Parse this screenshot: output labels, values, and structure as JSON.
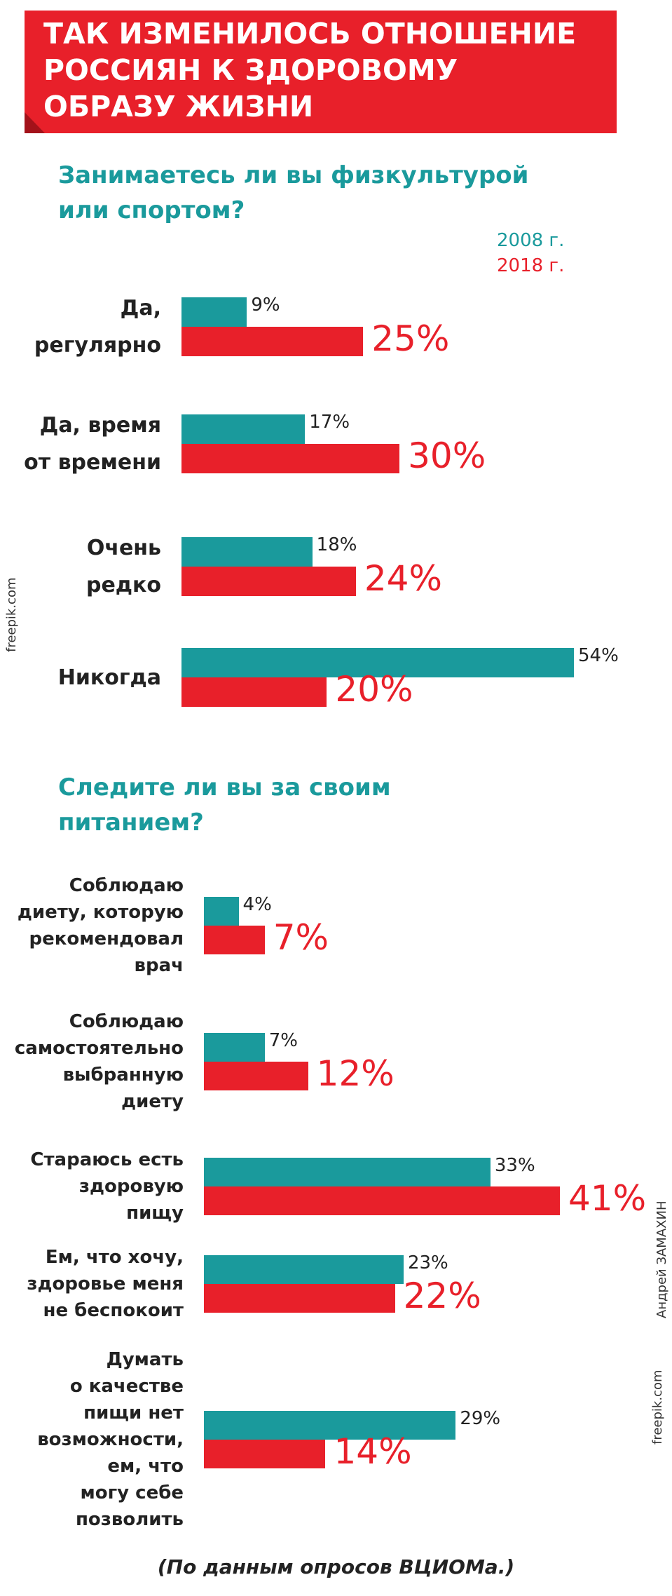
{
  "headline": "ТАК ИЗМЕНИЛОСЬ ОТНОШЕНИЕ\nРОССИЯН К ЗДОРОВОМУ\nОБРАЗУ ЖИЗНИ",
  "chart_data": [
    {
      "type": "bar",
      "title": "Занимаетесь ли вы физкультурой\nили спортом?",
      "categories": [
        "Да,\nрегулярно",
        "Да, время\nот времени",
        "Очень\nредко",
        "Никогда"
      ],
      "series": [
        {
          "name": "2008 г.",
          "color": "#1a9a9c",
          "values": [
            9,
            17,
            18,
            54
          ],
          "value_labels": [
            "9%",
            "17%",
            "18%",
            "54%"
          ]
        },
        {
          "name": "2018 г.",
          "color": "#e8202a",
          "values": [
            25,
            30,
            24,
            20
          ],
          "value_labels": [
            "25%",
            "30%",
            "24%",
            "20%"
          ]
        }
      ]
    },
    {
      "type": "bar",
      "title": "Следите ли вы за своим\nпитанием?",
      "categories": [
        "Соблюдаю\nдиету, которую\nрекомендовал\nврач",
        "Соблюдаю\nсамостоятельно\nвыбранную\nдиету",
        "Стараюсь есть\nздоровую\nпищу",
        "Ем, что хочу,\nздоровье меня\nне беспокоит",
        "Думать\nо качестве\nпищи нет\nвозможности,\nем, что\nмогу себе\nпозволить"
      ],
      "series": [
        {
          "color": "#1a9a9c",
          "values": [
            4,
            7,
            33,
            23,
            29
          ],
          "value_labels": [
            "4%",
            "7%",
            "33%",
            "23%",
            "29%"
          ]
        },
        {
          "color": "#e8202a",
          "values": [
            7,
            12,
            41,
            22,
            14
          ],
          "value_labels": [
            "7%",
            "12%",
            "41%",
            "22%",
            "14%"
          ]
        }
      ]
    }
  ],
  "credits": [
    "freepik.com",
    "Андрей ЗАМАХИН",
    "freepik.com"
  ],
  "source": "(По данным опросов ВЦИОМа.)"
}
